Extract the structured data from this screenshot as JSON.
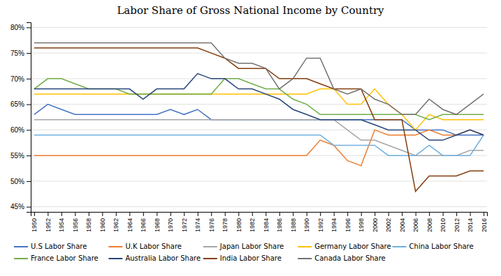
{
  "chart_data": {
    "type": "line",
    "title": "Labor Share of Gross National Income by Country",
    "x": [
      1950,
      1952,
      1954,
      1956,
      1958,
      1960,
      1962,
      1964,
      1966,
      1968,
      1970,
      1972,
      1974,
      1976,
      1978,
      1980,
      1982,
      1984,
      1986,
      1988,
      1990,
      1992,
      1994,
      1996,
      1998,
      2000,
      2002,
      2004,
      2006,
      2008,
      2010,
      2012,
      2014,
      2016
    ],
    "series": [
      {
        "name": "U.S Labor Share",
        "color": "#4472C4",
        "values": [
          63,
          65,
          64,
          63,
          63,
          63,
          63,
          63,
          63,
          63,
          64,
          63,
          64,
          62,
          62,
          62,
          62,
          62,
          62,
          62,
          62,
          62,
          62,
          62,
          62,
          62,
          62,
          62,
          60,
          60,
          60,
          59,
          59,
          59
        ]
      },
      {
        "name": "U.K Labor Share",
        "color": "#ED7D31",
        "values": [
          55,
          55,
          55,
          55,
          55,
          55,
          55,
          55,
          55,
          55,
          55,
          55,
          55,
          55,
          55,
          55,
          55,
          55,
          55,
          55,
          55,
          58,
          57,
          54,
          53,
          60,
          59,
          59,
          59,
          60,
          59,
          59,
          60,
          59
        ]
      },
      {
        "name": "Japan Labor Share",
        "color": "#A5A5A5",
        "values": [
          62,
          62,
          62,
          62,
          62,
          62,
          62,
          62,
          62,
          62,
          62,
          62,
          62,
          62,
          62,
          62,
          62,
          62,
          62,
          62,
          62,
          62,
          62,
          60,
          58,
          58,
          57,
          56,
          55,
          55,
          55,
          55,
          56,
          56
        ]
      },
      {
        "name": "Germany Labor Share",
        "color": "#FFC000",
        "values": [
          67,
          67,
          67,
          67,
          67,
          67,
          67,
          67,
          67,
          67,
          67,
          67,
          67,
          67,
          67,
          67,
          67,
          67,
          67,
          67,
          67,
          68,
          68,
          65,
          65,
          68,
          65,
          63,
          60,
          63,
          62,
          62,
          62,
          62
        ]
      },
      {
        "name": "China Labor Share",
        "color": "#70B0E0",
        "values": [
          59,
          59,
          59,
          59,
          59,
          59,
          59,
          59,
          59,
          59,
          59,
          59,
          59,
          59,
          59,
          59,
          59,
          59,
          59,
          59,
          59,
          59,
          57,
          57,
          57,
          57,
          55,
          55,
          55,
          57,
          55,
          55,
          55,
          59
        ]
      },
      {
        "name": "France Labor Share",
        "color": "#70AD47",
        "values": [
          68,
          70,
          70,
          69,
          68,
          68,
          68,
          67,
          67,
          67,
          67,
          67,
          67,
          67,
          70,
          70,
          69,
          68,
          68,
          66,
          65,
          63,
          63,
          63,
          63,
          63,
          63,
          63,
          63,
          62,
          63,
          63,
          63,
          63
        ]
      },
      {
        "name": "Australia Labor Share",
        "color": "#264478",
        "values": [
          68,
          68,
          68,
          68,
          68,
          68,
          68,
          68,
          66,
          68,
          68,
          68,
          71,
          70,
          70,
          68,
          68,
          67,
          66,
          64,
          63,
          62,
          62,
          62,
          62,
          61,
          60,
          60,
          60,
          58,
          58,
          59,
          60,
          59
        ]
      },
      {
        "name": "India Labor Share",
        "color": "#843C0C",
        "values": [
          76,
          76,
          76,
          76,
          76,
          76,
          76,
          76,
          76,
          76,
          76,
          76,
          76,
          75,
          74,
          72,
          72,
          72,
          70,
          70,
          70,
          69,
          68,
          68,
          68,
          62,
          62,
          62,
          48,
          51,
          51,
          51,
          52,
          52
        ]
      },
      {
        "name": "Canada Labor Share",
        "color": "#767171",
        "values": [
          77,
          77,
          77,
          77,
          77,
          77,
          77,
          77,
          77,
          77,
          77,
          77,
          77,
          77,
          74,
          73,
          73,
          72,
          68,
          70,
          74,
          74,
          68,
          67,
          68,
          66,
          65,
          63,
          63,
          66,
          64,
          63,
          65,
          67
        ]
      }
    ],
    "xlim": [
      1949.5,
      2016.5
    ],
    "xticks": [
      1950,
      1952,
      1954,
      1956,
      1958,
      1960,
      1962,
      1964,
      1966,
      1968,
      1970,
      1972,
      1974,
      1976,
      1978,
      1980,
      1982,
      1984,
      1986,
      1988,
      1990,
      1992,
      1994,
      1996,
      1998,
      2000,
      2002,
      2004,
      2006,
      2008,
      2010,
      2012,
      2014,
      2016
    ],
    "ylim": [
      44,
      81
    ],
    "yticks": [
      {
        "value": 45,
        "label": "45%"
      },
      {
        "value": 50,
        "label": "50%"
      },
      {
        "value": 55,
        "label": "55%"
      },
      {
        "value": 60,
        "label": "60%"
      },
      {
        "value": 65,
        "label": "65%"
      },
      {
        "value": 70,
        "label": "70%"
      },
      {
        "value": 75,
        "label": "75%"
      },
      {
        "value": 80,
        "label": "80%"
      }
    ],
    "grid": true,
    "legend": "bottom"
  }
}
